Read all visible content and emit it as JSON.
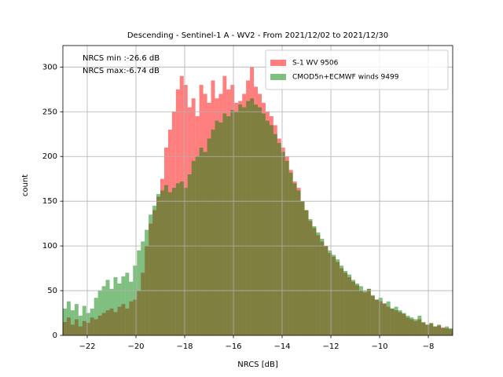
{
  "chart_data": {
    "type": "histogram",
    "title": "Descending - Sentinel-1 A - WV2 - From 2021/12/02 to 2021/12/30",
    "x_label": "NRCS [dB]",
    "y_label": "count",
    "annotations": [
      "NRCS min :-26.6 dB",
      "NRCS max:-6.74 dB"
    ],
    "bins": [
      -23,
      -22.84,
      -22.68,
      -22.52,
      -22.36,
      -22.2,
      -22.04,
      -21.88,
      -21.72,
      -21.56,
      -21.4,
      -21.24,
      -21.08,
      -20.92,
      -20.76,
      -20.6,
      -20.44,
      -20.28,
      -20.12,
      -19.96,
      -19.8,
      -19.64,
      -19.48,
      -19.32,
      -19.16,
      -19,
      -18.84,
      -18.68,
      -18.52,
      -18.36,
      -18.2,
      -18.04,
      -17.88,
      -17.72,
      -17.56,
      -17.4,
      -17.24,
      -17.08,
      -16.92,
      -16.76,
      -16.6,
      -16.44,
      -16.28,
      -16.12,
      -15.96,
      -15.8,
      -15.64,
      -15.48,
      -15.32,
      -15.16,
      -15,
      -14.84,
      -14.68,
      -14.52,
      -14.36,
      -14.2,
      -14.04,
      -13.88,
      -13.72,
      -13.56,
      -13.4,
      -13.24,
      -13.08,
      -12.92,
      -12.76,
      -12.6,
      -12.44,
      -12.28,
      -12.12,
      -11.96,
      -11.8,
      -11.64,
      -11.48,
      -11.32,
      -11.16,
      -11,
      -10.84,
      -10.68,
      -10.52,
      -10.36,
      -10.2,
      -10.04,
      -9.88,
      -9.72,
      -9.56,
      -9.4,
      -9.24,
      -9.08,
      -8.92,
      -8.76,
      -8.6,
      -8.44,
      -8.28,
      -8.12,
      -7.96,
      -7.8,
      -7.64,
      -7.48,
      -7.32,
      -7.16,
      -7
    ],
    "series": [
      {
        "name": "S-1 WV 9506",
        "color": "#ff0000",
        "values": [
          15,
          20,
          12,
          18,
          10,
          16,
          14,
          20,
          18,
          22,
          25,
          28,
          30,
          26,
          32,
          35,
          30,
          38,
          40,
          50,
          70,
          100,
          125,
          140,
          155,
          175,
          210,
          230,
          250,
          275,
          290,
          280,
          255,
          265,
          245,
          280,
          270,
          260,
          285,
          265,
          270,
          290,
          275,
          280,
          260,
          262,
          270,
          285,
          300,
          278,
          270,
          260,
          250,
          245,
          235,
          220,
          210,
          200,
          185,
          172,
          165,
          150,
          140,
          128,
          120,
          112,
          105,
          100,
          92,
          88,
          82,
          75,
          70,
          65,
          60,
          56,
          50,
          48,
          52,
          44,
          40,
          38,
          36,
          32,
          30,
          28,
          26,
          24,
          20,
          18,
          16,
          18,
          14,
          12,
          13,
          10,
          11,
          9,
          8,
          7
        ]
      },
      {
        "name": "CMOD5n+ECMWF winds 9499",
        "color": "#008000",
        "values": [
          30,
          38,
          28,
          35,
          22,
          33,
          25,
          30,
          42,
          50,
          55,
          62,
          52,
          65,
          58,
          66,
          70,
          60,
          78,
          95,
          105,
          118,
          135,
          145,
          158,
          162,
          168,
          160,
          165,
          170,
          172,
          165,
          180,
          195,
          200,
          210,
          205,
          220,
          230,
          240,
          238,
          248,
          245,
          252,
          250,
          258,
          255,
          262,
          265,
          258,
          255,
          248,
          240,
          235,
          225,
          215,
          205,
          195,
          182,
          170,
          162,
          150,
          140,
          130,
          122,
          115,
          108,
          100,
          95,
          90,
          85,
          78,
          72,
          68,
          62,
          58,
          55,
          50,
          52,
          45,
          40,
          42,
          35,
          38,
          30,
          32,
          28,
          25,
          22,
          20,
          18,
          22,
          15,
          12,
          14,
          10,
          12,
          8,
          10,
          8
        ]
      }
    ],
    "alpha": 0.5,
    "xlim": [
      -23,
      -7
    ],
    "ylim": [
      0,
      324
    ],
    "xticks": [
      {
        "value": -22,
        "label": "−22"
      },
      {
        "value": -20,
        "label": "−20"
      },
      {
        "value": -18,
        "label": "−18"
      },
      {
        "value": -16,
        "label": "−16"
      },
      {
        "value": -14,
        "label": "−14"
      },
      {
        "value": -12,
        "label": "−12"
      },
      {
        "value": -10,
        "label": "−10"
      },
      {
        "value": -8,
        "label": "−8"
      }
    ],
    "yticks": [
      0,
      50,
      100,
      150,
      200,
      250,
      300
    ],
    "grid": true,
    "legend": "upper right"
  }
}
